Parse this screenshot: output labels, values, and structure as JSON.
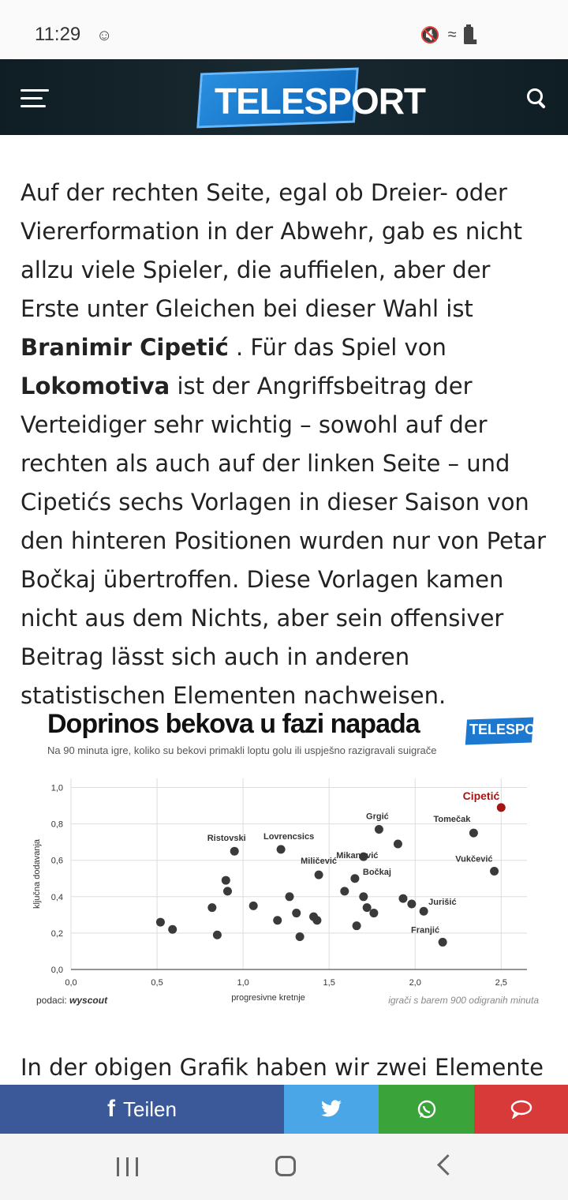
{
  "status_bar": {
    "time": "11:29"
  },
  "header": {
    "logo_text": "TELESPORT"
  },
  "article": {
    "p1_a": "Auf der rechten Seite, egal ob Dreier- oder Viererformation in der Abwehr, gab es nicht allzu viele Spieler, die auffielen, aber der Erste unter Gleichen bei dieser Wahl ist ",
    "p1_bold1": "Branimir Cipetić",
    "p1_b": " . Für das Spiel von ",
    "p1_bold2": "Lokomotiva",
    "p1_c": " ist der Angriffsbeitrag der Verteidiger sehr wichtig – sowohl auf der rechten als auch auf der linken Seite – und Cipetićs sechs Vorlagen in dieser Saison von den hinteren Positionen wurden nur von Petar Bočkaj übertroffen. Diese Vorlagen kamen nicht aus dem Nichts, aber sein offensiver Beitrag lässt sich auch in anderen statistischen Elementen nachweisen.",
    "p2": "In der obigen Grafik haben wir zwei Elemente"
  },
  "chart_data": {
    "type": "scatter",
    "title": "Doprinos bekova u fazi napada",
    "subtitle": "Na 90 minuta igre, koliko su bekovi primakli loptu golu  ili uspješno razigravali suigrače",
    "logo_text": "TELESPORT",
    "xlabel": "progresivne kretnje",
    "ylabel": "ključna dodavanja",
    "xlim": [
      0,
      2.65
    ],
    "ylim": [
      0,
      1.05
    ],
    "xticks": [
      "0,0",
      "0,5",
      "1,0",
      "1,5",
      "2,0",
      "2,5"
    ],
    "yticks": [
      "0,0",
      "0,2",
      "0,4",
      "0,6",
      "0,8",
      "1,0"
    ],
    "grid": true,
    "footnote_left_label": "podaci:",
    "footnote_left_source": "wyscout",
    "footnote_right": "igrači s barem 900 odigranih minuta",
    "highlight_color": "#a31515",
    "point_color": "#3a3a3a",
    "points": [
      {
        "x": 2.5,
        "y": 0.89,
        "label": "Cipetić",
        "highlight": true
      },
      {
        "x": 2.34,
        "y": 0.75,
        "label": "Tomečak"
      },
      {
        "x": 1.79,
        "y": 0.77,
        "label": "Grgić"
      },
      {
        "x": 1.9,
        "y": 0.69,
        "label": ""
      },
      {
        "x": 0.95,
        "y": 0.65,
        "label": "Ristovski"
      },
      {
        "x": 1.22,
        "y": 0.66,
        "label": "Lovrencsics"
      },
      {
        "x": 1.44,
        "y": 0.52,
        "label": "Miličević"
      },
      {
        "x": 1.65,
        "y": 0.5,
        "label": "Bočkaj"
      },
      {
        "x": 2.46,
        "y": 0.54,
        "label": "Vukčević"
      },
      {
        "x": 1.7,
        "y": 0.62,
        "label": "Mikanović"
      },
      {
        "x": 0.9,
        "y": 0.49,
        "label": ""
      },
      {
        "x": 0.91,
        "y": 0.43,
        "label": ""
      },
      {
        "x": 0.82,
        "y": 0.34,
        "label": ""
      },
      {
        "x": 1.06,
        "y": 0.35,
        "label": ""
      },
      {
        "x": 1.27,
        "y": 0.4,
        "label": ""
      },
      {
        "x": 1.31,
        "y": 0.31,
        "label": ""
      },
      {
        "x": 1.2,
        "y": 0.27,
        "label": ""
      },
      {
        "x": 1.41,
        "y": 0.29,
        "label": ""
      },
      {
        "x": 1.43,
        "y": 0.27,
        "label": ""
      },
      {
        "x": 1.33,
        "y": 0.18,
        "label": ""
      },
      {
        "x": 1.59,
        "y": 0.43,
        "label": ""
      },
      {
        "x": 1.7,
        "y": 0.4,
        "label": ""
      },
      {
        "x": 1.72,
        "y": 0.34,
        "label": ""
      },
      {
        "x": 1.76,
        "y": 0.31,
        "label": ""
      },
      {
        "x": 1.66,
        "y": 0.24,
        "label": ""
      },
      {
        "x": 1.93,
        "y": 0.39,
        "label": ""
      },
      {
        "x": 1.98,
        "y": 0.36,
        "label": ""
      },
      {
        "x": 2.05,
        "y": 0.32,
        "label": "Jurišić"
      },
      {
        "x": 2.16,
        "y": 0.15,
        "label": "Franjić"
      },
      {
        "x": 0.52,
        "y": 0.26,
        "label": ""
      },
      {
        "x": 0.59,
        "y": 0.22,
        "label": ""
      },
      {
        "x": 0.85,
        "y": 0.19,
        "label": ""
      }
    ]
  },
  "share": {
    "facebook_label": "Teilen",
    "facebook_icon": "f",
    "twitter_icon": "twitter-bird",
    "whatsapp_icon": "whatsapp",
    "comment_icon": "comment"
  }
}
